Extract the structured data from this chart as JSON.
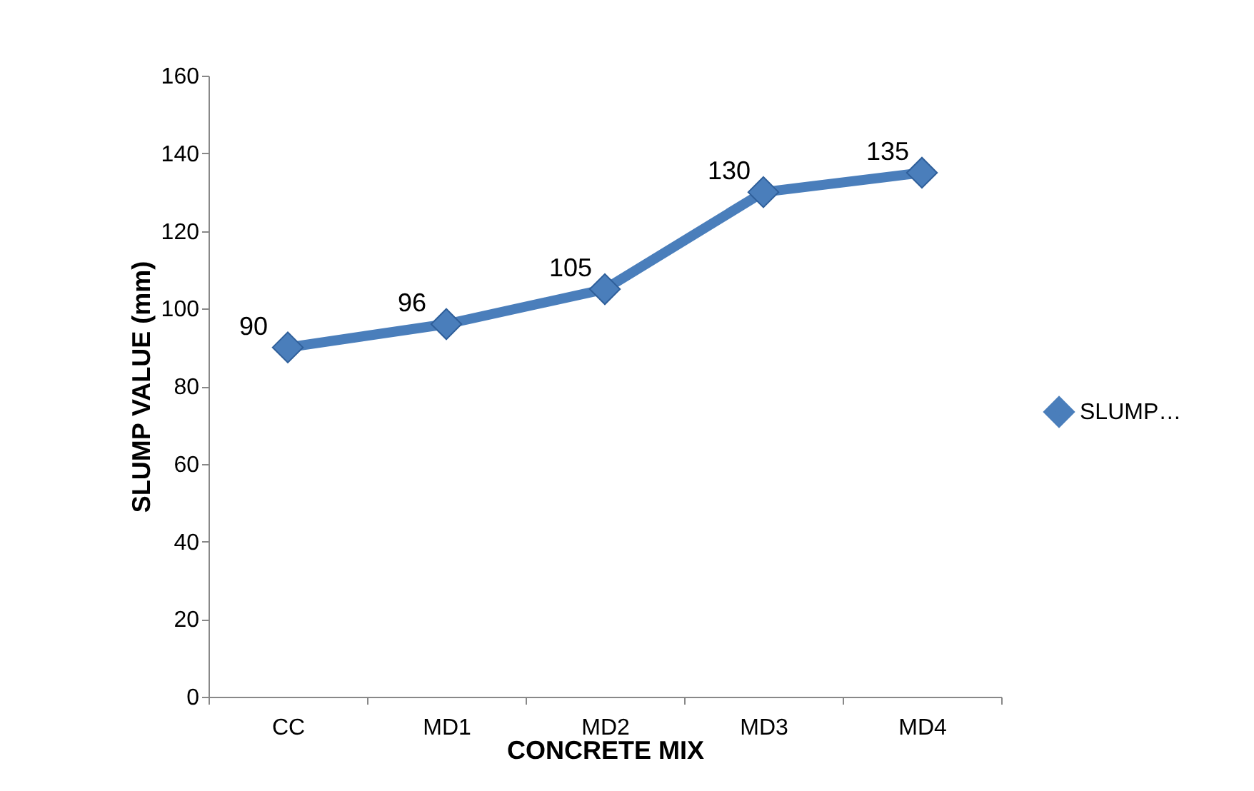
{
  "chart_data": {
    "type": "line",
    "xlabel": "CONCRETE MIX",
    "ylabel": "SLUMP VALUE (mm)",
    "categories": [
      "CC",
      "MD1",
      "MD2",
      "MD3",
      "MD4"
    ],
    "series": [
      {
        "name": "SLUMP…",
        "color": "#4a7ebb",
        "values": [
          90,
          96,
          105,
          130,
          135
        ]
      }
    ],
    "ylim": [
      0,
      160
    ],
    "yticks": [
      0,
      20,
      40,
      60,
      80,
      100,
      120,
      140,
      160
    ],
    "data_labels": true,
    "legend": "right",
    "marker": "diamond",
    "grid": false
  }
}
